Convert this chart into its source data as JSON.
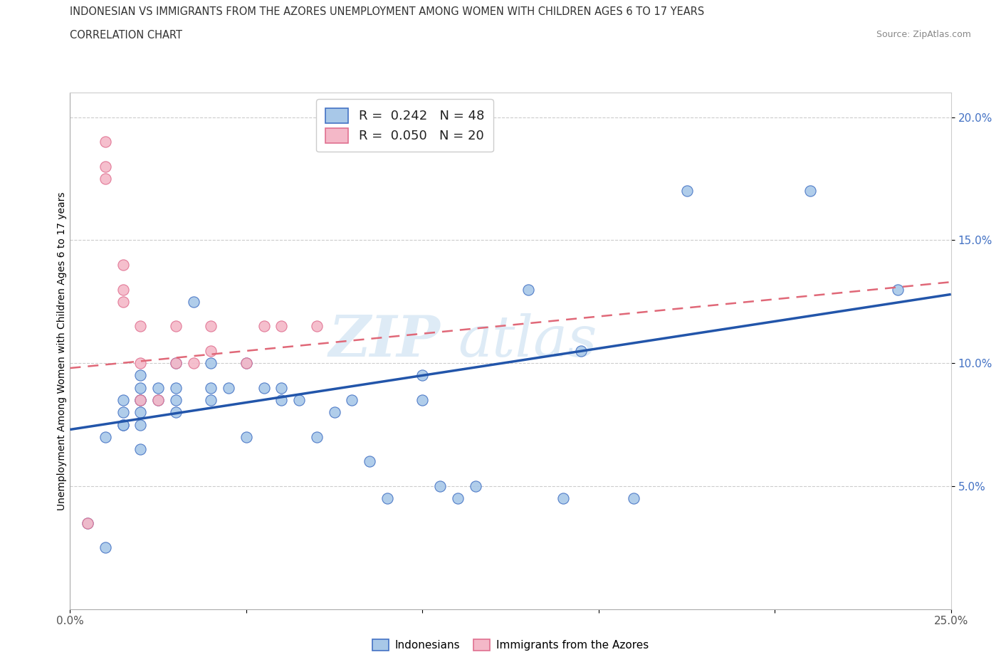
{
  "title_line1": "INDONESIAN VS IMMIGRANTS FROM THE AZORES UNEMPLOYMENT AMONG WOMEN WITH CHILDREN AGES 6 TO 17 YEARS",
  "title_line2": "CORRELATION CHART",
  "source_text": "Source: ZipAtlas.com",
  "ylabel": "Unemployment Among Women with Children Ages 6 to 17 years",
  "xlim": [
    0.0,
    0.25
  ],
  "ylim": [
    0.0,
    0.21
  ],
  "xticks": [
    0.0,
    0.05,
    0.1,
    0.15,
    0.2,
    0.25
  ],
  "xticklabels": [
    "0.0%",
    "",
    "",
    "",
    "",
    "25.0%"
  ],
  "yticks": [
    0.05,
    0.1,
    0.15,
    0.2
  ],
  "yticklabels": [
    "5.0%",
    "10.0%",
    "15.0%",
    "20.0%"
  ],
  "color_indonesian_fill": "#a8c8e8",
  "color_indonesian_edge": "#4472c4",
  "color_azores_fill": "#f4b8c8",
  "color_azores_edge": "#e07090",
  "color_line_indonesian": "#2255aa",
  "color_line_azores": "#e06878",
  "indonesian_x": [
    0.005,
    0.01,
    0.01,
    0.015,
    0.015,
    0.015,
    0.015,
    0.02,
    0.02,
    0.02,
    0.02,
    0.02,
    0.02,
    0.02,
    0.025,
    0.025,
    0.03,
    0.03,
    0.03,
    0.03,
    0.035,
    0.04,
    0.04,
    0.04,
    0.045,
    0.05,
    0.05,
    0.055,
    0.06,
    0.06,
    0.065,
    0.07,
    0.075,
    0.08,
    0.085,
    0.09,
    0.1,
    0.1,
    0.105,
    0.11,
    0.115,
    0.13,
    0.14,
    0.145,
    0.16,
    0.175,
    0.21,
    0.235
  ],
  "indonesian_y": [
    0.035,
    0.025,
    0.07,
    0.075,
    0.075,
    0.08,
    0.085,
    0.065,
    0.075,
    0.08,
    0.085,
    0.085,
    0.09,
    0.095,
    0.085,
    0.09,
    0.08,
    0.085,
    0.09,
    0.1,
    0.125,
    0.085,
    0.09,
    0.1,
    0.09,
    0.07,
    0.1,
    0.09,
    0.085,
    0.09,
    0.085,
    0.07,
    0.08,
    0.085,
    0.06,
    0.045,
    0.085,
    0.095,
    0.05,
    0.045,
    0.05,
    0.13,
    0.045,
    0.105,
    0.045,
    0.17,
    0.17,
    0.13
  ],
  "azores_x": [
    0.005,
    0.01,
    0.01,
    0.01,
    0.015,
    0.015,
    0.015,
    0.02,
    0.02,
    0.02,
    0.025,
    0.03,
    0.03,
    0.035,
    0.04,
    0.04,
    0.05,
    0.055,
    0.06,
    0.07
  ],
  "azores_y": [
    0.035,
    0.175,
    0.18,
    0.19,
    0.125,
    0.13,
    0.14,
    0.085,
    0.1,
    0.115,
    0.085,
    0.1,
    0.115,
    0.1,
    0.105,
    0.115,
    0.1,
    0.115,
    0.115,
    0.115
  ],
  "line_indo_x0": 0.0,
  "line_indo_y0": 0.073,
  "line_indo_x1": 0.25,
  "line_indo_y1": 0.128,
  "line_azores_x0": 0.0,
  "line_azores_y0": 0.098,
  "line_azores_x1": 0.25,
  "line_azores_y1": 0.133
}
